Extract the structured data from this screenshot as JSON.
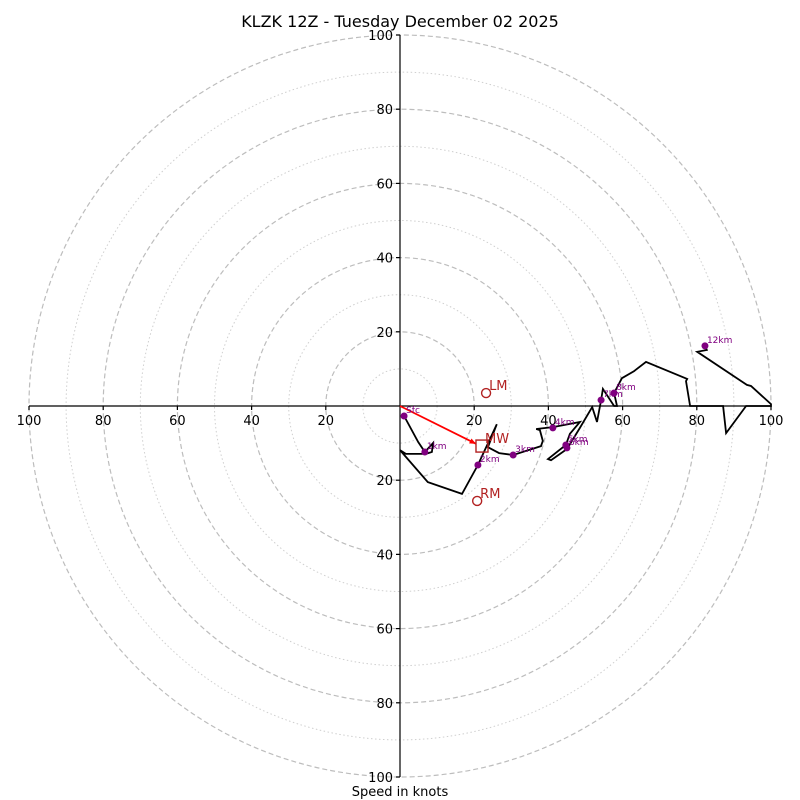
{
  "chart_data": {
    "type": "line",
    "subtype": "hodograph",
    "title": "KLZK 12Z - Tuesday December 02 2025",
    "xlabel": "Speed in knots",
    "ylabel": "",
    "xlim": [
      -100,
      100
    ],
    "ylim": [
      -100,
      100
    ],
    "x_ticks": [
      -100,
      -80,
      -60,
      -40,
      -20,
      20,
      40,
      60,
      80,
      100
    ],
    "x_tick_labels": [
      "100",
      "80",
      "60",
      "40",
      "20",
      "20",
      "40",
      "60",
      "80",
      "100"
    ],
    "y_ticks": [
      100,
      80,
      60,
      40,
      20,
      -20,
      -40,
      -60,
      -80,
      -100
    ],
    "y_tick_labels": [
      "100",
      "80",
      "60",
      "40",
      "20",
      "20",
      "40",
      "60",
      "80",
      "100"
    ],
    "rings_major": [
      20,
      40,
      60,
      80,
      100
    ],
    "rings_minor": [
      10,
      30,
      50,
      70,
      90
    ],
    "grid": true,
    "colors": {
      "trace": "#000000",
      "height_markers": "#800080",
      "storm_motion": "#b22222",
      "shear_vector": "#ff0000",
      "grid": "#bdbdbd"
    },
    "trace": {
      "name": "wind profile (u, v knots)",
      "points": [
        [
          1.1,
          -2.7
        ],
        [
          4.9,
          -9.7
        ],
        [
          6.7,
          -12.4
        ],
        [
          8.9,
          -10.0
        ],
        [
          8.6,
          -12.4
        ],
        [
          7.0,
          -12.9
        ],
        [
          1.6,
          -12.9
        ],
        [
          0.0,
          -11.9
        ],
        [
          7.5,
          -20.5
        ],
        [
          16.7,
          -23.7
        ],
        [
          21.0,
          -15.9
        ],
        [
          26.1,
          -4.9
        ],
        [
          23.7,
          -11.1
        ],
        [
          26.7,
          -12.7
        ],
        [
          30.5,
          -13.2
        ],
        [
          38.0,
          -10.8
        ],
        [
          38.5,
          -9.4
        ],
        [
          37.7,
          -6.5
        ],
        [
          36.7,
          -6.2
        ],
        [
          41.2,
          -5.7
        ],
        [
          48.5,
          -4.3
        ],
        [
          45.8,
          -7.5
        ],
        [
          44.7,
          -10.5
        ],
        [
          39.9,
          -14.3
        ],
        [
          40.7,
          -14.6
        ],
        [
          45.0,
          -11.6
        ],
        [
          48.5,
          -5.9
        ],
        [
          51.8,
          -0.3
        ],
        [
          53.1,
          -4.3
        ],
        [
          54.2,
          1.6
        ],
        [
          54.7,
          4.6
        ],
        [
          57.7,
          0.0
        ],
        [
          58.5,
          0.0
        ],
        [
          57.7,
          3.5
        ],
        [
          59.8,
          7.5
        ],
        [
          63.1,
          9.4
        ],
        [
          66.3,
          11.9
        ],
        [
          77.4,
          7.3
        ],
        [
          77.1,
          6.7
        ],
        [
          78.2,
          0.0
        ],
        [
          87.1,
          0.0
        ],
        [
          87.9,
          -7.3
        ],
        [
          93.3,
          0.0
        ],
        [
          100.0,
          0.0
        ],
        [
          100.0,
          0.5
        ],
        [
          94.6,
          5.4
        ],
        [
          93.5,
          5.7
        ],
        [
          80.1,
          14.6
        ],
        [
          82.7,
          15.1
        ],
        [
          82.2,
          16.2
        ]
      ]
    },
    "height_markers": [
      {
        "label": "Sfc",
        "u": 1.1,
        "v": -2.7
      },
      {
        "label": "1km",
        "u": 6.7,
        "v": -12.4
      },
      {
        "label": "2km",
        "u": 21.0,
        "v": -15.9
      },
      {
        "label": "3km",
        "u": 30.5,
        "v": -13.2
      },
      {
        "label": "4km",
        "u": 41.2,
        "v": -5.9
      },
      {
        "label": "5km",
        "u": 44.7,
        "v": -10.5
      },
      {
        "label": "6km",
        "u": 45.0,
        "v": -11.3
      },
      {
        "label": "7km",
        "u": 54.2,
        "v": 1.6
      },
      {
        "label": "8km",
        "u": 57.7,
        "v": 3.5
      },
      {
        "label": "12km",
        "u": 82.2,
        "v": 16.2
      }
    ],
    "storm_motion": [
      {
        "label": "LM",
        "u": 23.2,
        "v": 3.5,
        "marker": "circle"
      },
      {
        "label": "RM",
        "u": 20.8,
        "v": -25.6,
        "marker": "circle"
      },
      {
        "label": "MW",
        "u": 22.1,
        "v": -10.8,
        "marker": "square"
      }
    ],
    "shear_vector": {
      "from": [
        0,
        0
      ],
      "to": [
        20.5,
        -10.2
      ]
    }
  }
}
